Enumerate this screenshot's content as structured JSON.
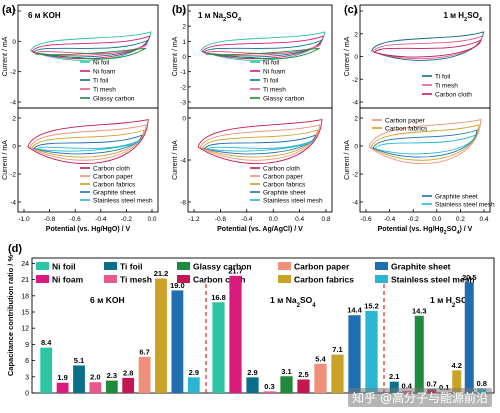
{
  "panels_top": [
    {
      "letter": "(a)",
      "title": "6 м KOH",
      "ylabel": "Current / mA",
      "xlabel": "Potential (vs. Hg/HgO) / V",
      "xlim": [
        -1.1,
        0.1
      ],
      "xticks": [
        "-1.0",
        "-0.8",
        "-0.6",
        "-0.4",
        "-0.2",
        "0.0"
      ],
      "upper": {
        "ylim": [
          -4,
          2
        ],
        "yticks": [
          "2",
          "0",
          "-2",
          "-4"
        ],
        "legend": [
          "Ni foil",
          "Ni foam",
          "Ti foil",
          "Ti mesh",
          "Glassy carbon"
        ]
      },
      "lower": {
        "ylim": [
          -4,
          2
        ],
        "yticks": [
          "2",
          "0",
          "-2",
          "-4"
        ],
        "legend": [
          "Carbon cloth",
          "Carbon paper",
          "Carbon fabrics",
          "Graphite sheet",
          "Stainless steel mesh"
        ]
      }
    },
    {
      "letter": "(b)",
      "title": "1 м Na2SO4",
      "ylabel": "Current / mA",
      "xlabel": "Potential (vs. Ag/AgCl) / V",
      "xlim": [
        -1.2,
        0.9
      ],
      "xticks": [
        "-1.2",
        "-0.8",
        "-0.4",
        "0.0",
        "0.4",
        "0.8"
      ],
      "upper": {
        "ylim": [
          -3,
          4
        ],
        "yticks": [
          "3",
          "2",
          "1",
          "0",
          "-1",
          "-2",
          "-3"
        ],
        "legend": [
          "Ni foil",
          "Ni foam",
          "Ti foil",
          "Ti mesh",
          "Glassy carbon"
        ]
      },
      "lower": {
        "ylim": [
          -8,
          4
        ],
        "yticks": [
          "0",
          "-4",
          "-8"
        ],
        "legend": [
          "Carbon cloth",
          "Carbon paper",
          "Carbon fabrics",
          "Graphite sheet",
          "Stainless steel mesh"
        ]
      }
    },
    {
      "letter": "(c)",
      "title": "1 м H2SO4",
      "ylabel": "Current / mA",
      "xlabel": "Potential (vs. Hg/Hg2SO4) / V",
      "xlim": [
        -0.7,
        0.5
      ],
      "xticks": [
        "-0.6",
        "-0.4",
        "-0.2",
        "0.0",
        "0.2",
        "0.4"
      ],
      "upper": {
        "ylim": [
          -4,
          4
        ],
        "yticks": [
          "4",
          "2",
          "0",
          "-2",
          "-4"
        ],
        "legend": [
          "Ti foil",
          "Ti mesh",
          "Carbon cloth"
        ]
      },
      "lower": {
        "ylim": [
          -4,
          2
        ],
        "yticks": [
          "2",
          "0",
          "-2",
          "-4"
        ],
        "legend": [
          "Carbon paper",
          "Carbon fabrics",
          "Graphite sheet",
          "Stainless steel mesh"
        ]
      }
    }
  ],
  "panel_d_letter": "(d)",
  "colors": {
    "Ni foil": "#2ec4a4",
    "Ni foam": "#d81b7d",
    "Ti foil": "#0b6e8a",
    "Ti mesh": "#e85a8c",
    "Glassy carbon": "#1f8a3c",
    "Carbon cloth": "#c2184f",
    "Carbon paper": "#f0907a",
    "Carbon fabrics": "#c9a227",
    "Graphite sheet": "#1f6fb0",
    "Stainless steel mesh": "#29b6d3",
    "divider": "#d62828"
  },
  "chart_data": {
    "type": "bar",
    "ylabel": "Capacitance contribution ratio / %",
    "ylim": [
      0,
      25
    ],
    "yticks": [
      "0",
      "3",
      "6",
      "9",
      "12",
      "15",
      "18",
      "21",
      "24"
    ],
    "legend": [
      "Ni foil",
      "Ti foil",
      "Glassy carbon",
      "Carbon paper",
      "Graphite sheet",
      "Ni foam",
      "Ti mesh",
      "Carbon cloth",
      "Carbon fabrics",
      "Stainless steel mesh"
    ],
    "groups": [
      {
        "label": "6 м KOH",
        "series": [
          "Ni foil",
          "Ni foam",
          "Ti foil",
          "Ti mesh",
          "Glassy carbon",
          "Carbon cloth",
          "Carbon paper",
          "Carbon fabrics",
          "Graphite sheet",
          "Stainless steel mesh"
        ],
        "values": [
          8.4,
          1.9,
          5.1,
          2.0,
          2.3,
          2.8,
          6.7,
          21.2,
          19.0,
          2.9
        ],
        "labels": [
          "8.4",
          "1.9",
          "5.1",
          "2.0",
          "2.3",
          "2.8",
          "6.7",
          "21.2",
          "19.0",
          "2.9"
        ]
      },
      {
        "label": "1 м Na2SO4",
        "series": [
          "Ni foil",
          "Ni foam",
          "Ti foil",
          "Ti mesh",
          "Glassy carbon",
          "Carbon cloth",
          "Carbon paper",
          "Carbon fabrics",
          "Graphite sheet",
          "Stainless steel mesh"
        ],
        "values": [
          16.8,
          21.7,
          2.9,
          0.3,
          3.1,
          2.5,
          5.4,
          7.1,
          14.4,
          15.2
        ],
        "labels": [
          "16.8",
          "21.7",
          "2.9",
          "0.3",
          "3.1",
          "2.5",
          "5.4",
          "7.1",
          "14.4",
          "15.2"
        ]
      },
      {
        "label": "1 м H2SO4",
        "series": [
          "Ti foil",
          "Ti mesh",
          "Glassy carbon",
          "Carbon cloth",
          "Carbon paper",
          "Carbon fabrics",
          "Graphite sheet",
          "Stainless steel mesh"
        ],
        "values": [
          2.1,
          0.4,
          14.3,
          0.7,
          0.1,
          4.2,
          20.5,
          0.8
        ],
        "labels": [
          "2.1",
          "0.4",
          "14.3",
          "0.7",
          "0.1",
          "4.2",
          "20.5",
          "0.8"
        ]
      }
    ]
  },
  "watermark": "知乎 @高分子与能源前沿"
}
